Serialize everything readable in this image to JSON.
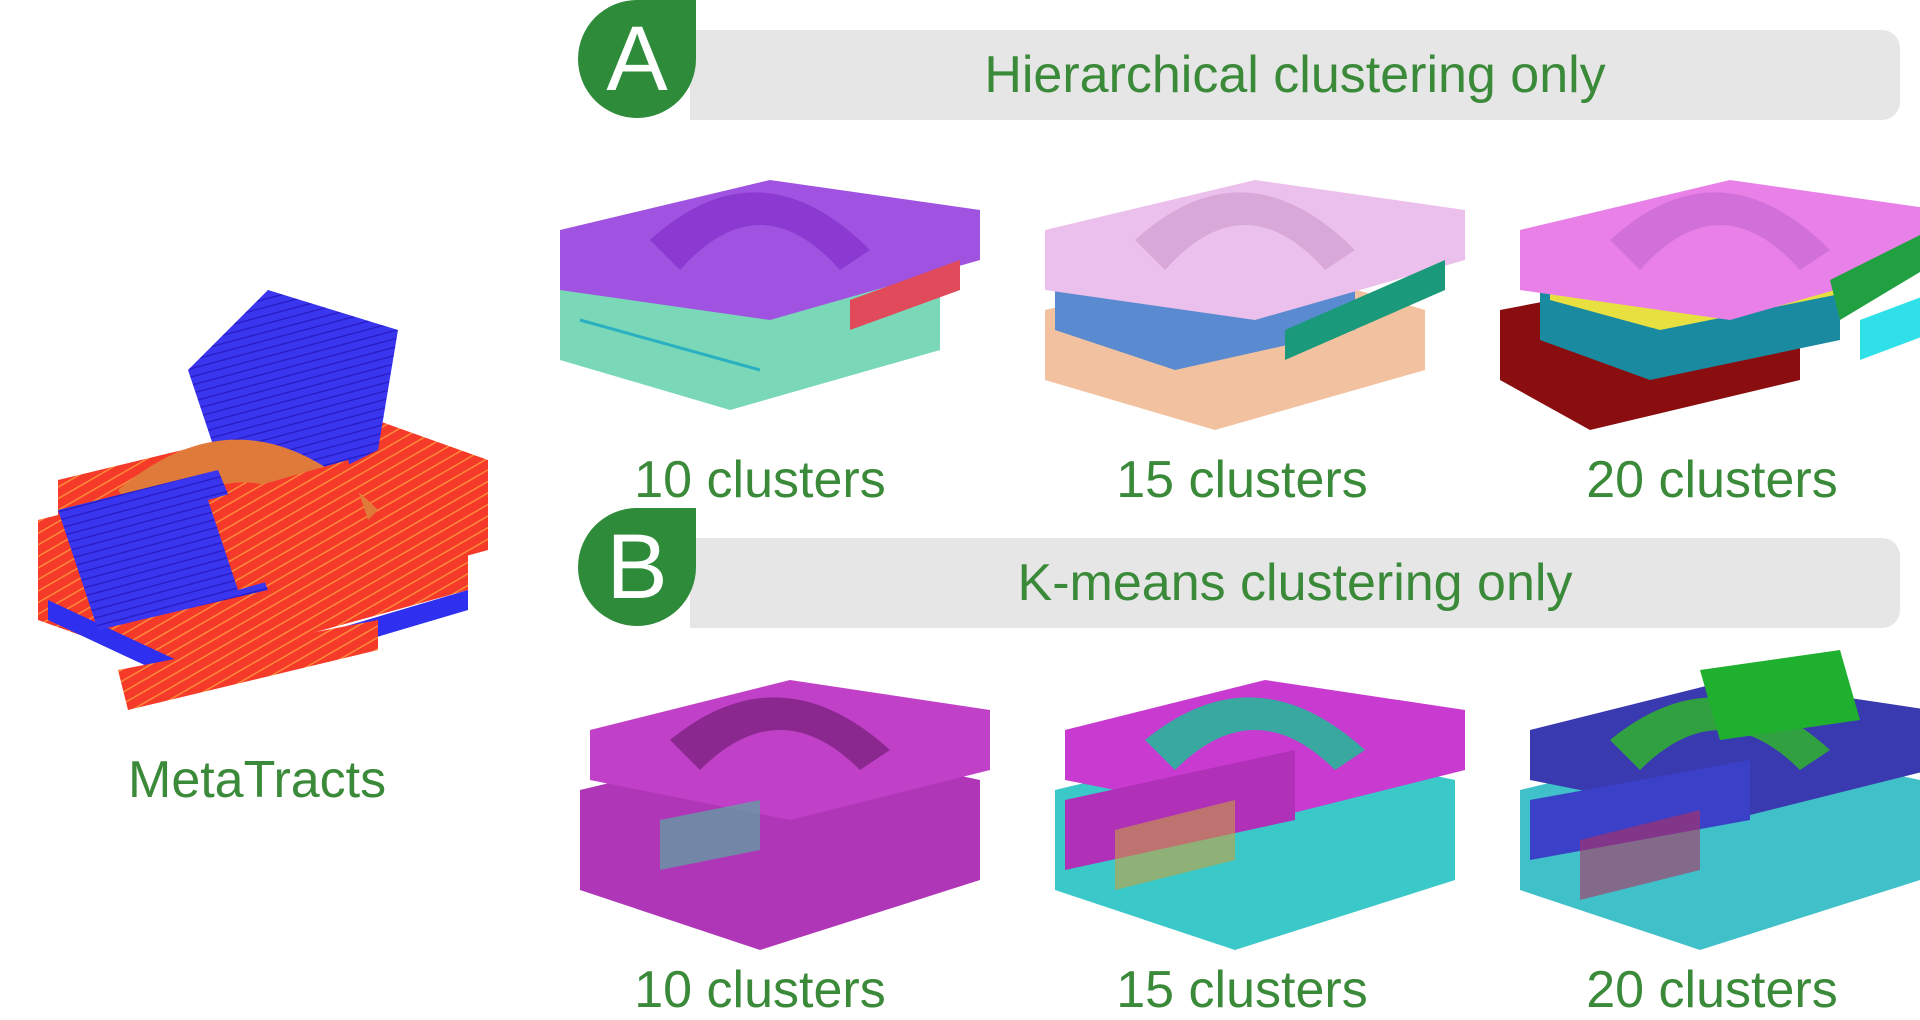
{
  "metatracts": {
    "label": "MetaTracts"
  },
  "panel_a": {
    "badge": "A",
    "title": "Hierarchical clustering only",
    "captions": [
      "10 clusters",
      "15 clusters",
      "20 clusters"
    ]
  },
  "panel_b": {
    "badge": "B",
    "title": "K-means clustering only",
    "captions": [
      "10 clusters",
      "15 clusters",
      "20 clusters"
    ]
  },
  "colors": {
    "accent_green": "#2e8b3a",
    "text_green": "#3a8a3a",
    "pill_gray": "#e6e6e6"
  }
}
